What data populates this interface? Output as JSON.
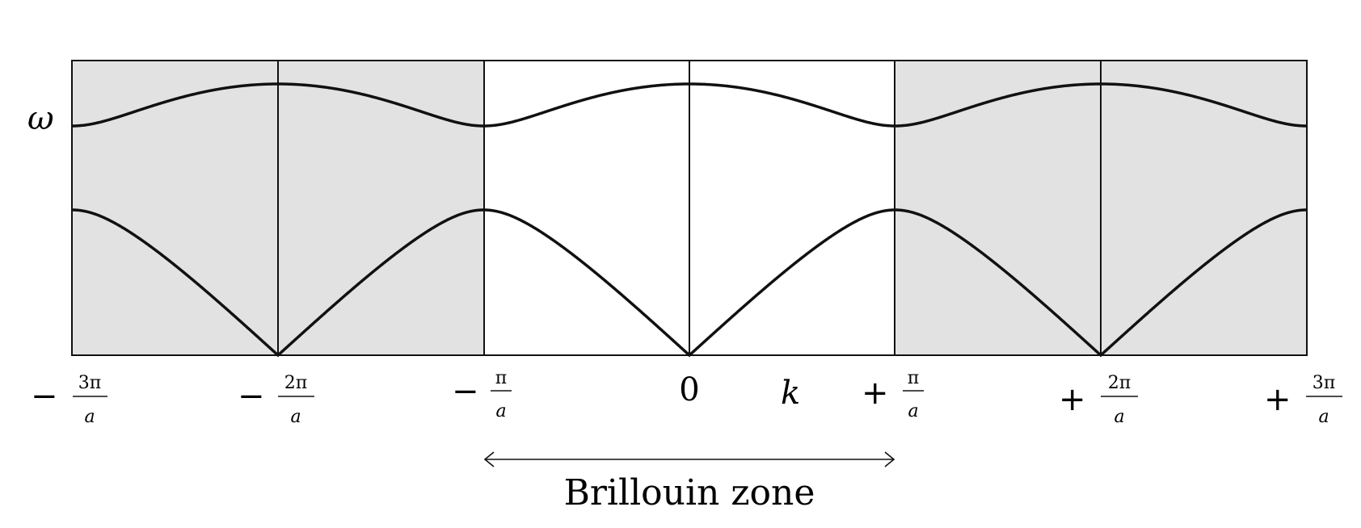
{
  "y_axis_label": "ω",
  "x_axis_label": "k",
  "ticks": [
    {
      "sign": "−",
      "num": "3π",
      "den": "a"
    },
    {
      "sign": "−",
      "num": "2π",
      "den": "a"
    },
    {
      "sign": "−",
      "num": "π",
      "den": "a"
    },
    {
      "zero": "0"
    },
    {
      "sign": "+",
      "num": "π",
      "den": "a"
    },
    {
      "sign": "+",
      "num": "2π",
      "den": "a"
    },
    {
      "sign": "+",
      "num": "3π",
      "den": "a"
    }
  ],
  "zone_label": "Brillouin zone",
  "colors": {
    "shade": "#e2e2e2",
    "line": "#111111",
    "background": "#ffffff"
  }
}
